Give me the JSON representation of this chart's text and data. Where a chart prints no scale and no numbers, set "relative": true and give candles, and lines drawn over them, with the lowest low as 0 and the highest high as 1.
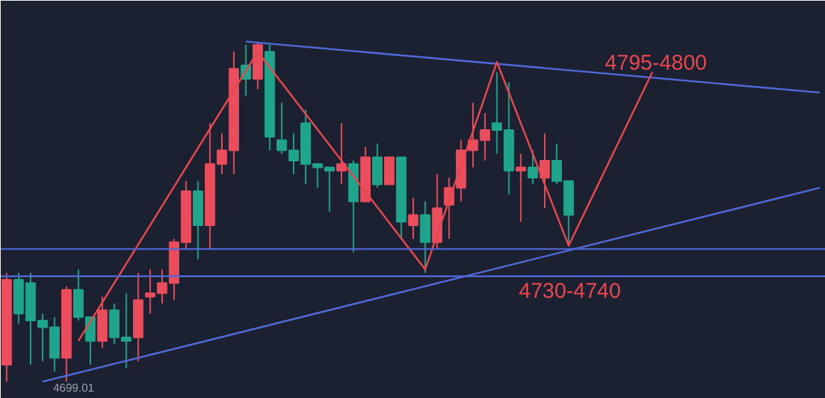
{
  "chart_data": {
    "type": "candlestick",
    "relative": true,
    "tick_labels": false,
    "categories": [
      null,
      null,
      null,
      null,
      null,
      null,
      null,
      null,
      null,
      null,
      null,
      null,
      null,
      null,
      null,
      null,
      null,
      null,
      null,
      null,
      null,
      null,
      null,
      null,
      null,
      null,
      null,
      null,
      null,
      null,
      null,
      null,
      null,
      null,
      null,
      null,
      null,
      null,
      null,
      null,
      null,
      null,
      null,
      null,
      null,
      null,
      null,
      null,
      null,
      null,
      null,
      null,
      null,
      null,
      null,
      null,
      null,
      null,
      null,
      null,
      null,
      null,
      null,
      null,
      null,
      null,
      null,
      null,
      null
    ],
    "ohlc": [
      [
        0.05,
        0.32,
        0.0,
        0.3
      ],
      [
        0.3,
        0.32,
        0.17,
        0.2
      ],
      [
        0.29,
        0.32,
        0.05,
        0.18
      ],
      [
        0.18,
        0.2,
        0.06,
        0.16
      ],
      [
        0.16,
        0.19,
        0.03,
        0.07
      ],
      [
        0.07,
        0.28,
        0.0,
        0.27
      ],
      [
        0.27,
        0.33,
        0.18,
        0.19
      ],
      [
        0.19,
        0.19,
        0.05,
        0.12
      ],
      [
        0.12,
        0.25,
        0.1,
        0.21
      ],
      [
        0.21,
        0.23,
        0.11,
        0.13
      ],
      [
        0.13,
        0.26,
        0.04,
        0.12
      ],
      [
        0.13,
        0.32,
        0.06,
        0.24
      ],
      [
        0.25,
        0.33,
        0.2,
        0.26
      ],
      [
        0.26,
        0.33,
        0.23,
        0.29
      ],
      [
        0.29,
        0.42,
        0.24,
        0.41
      ],
      [
        0.41,
        0.59,
        0.39,
        0.56
      ],
      [
        0.56,
        0.59,
        0.36,
        0.46
      ],
      [
        0.46,
        0.76,
        0.39,
        0.64
      ],
      [
        0.64,
        0.73,
        0.61,
        0.68
      ],
      [
        0.68,
        0.97,
        0.61,
        0.92
      ],
      [
        0.93,
        0.99,
        0.84,
        0.89
      ],
      [
        0.89,
        1.0,
        0.86,
        0.99
      ],
      [
        0.97,
        0.99,
        0.68,
        0.72
      ],
      [
        0.71,
        0.82,
        0.67,
        0.68
      ],
      [
        0.68,
        0.73,
        0.61,
        0.65
      ],
      [
        0.76,
        0.8,
        0.58,
        0.64
      ],
      [
        0.64,
        0.64,
        0.57,
        0.63
      ],
      [
        0.63,
        0.63,
        0.5,
        0.62
      ],
      [
        0.62,
        0.76,
        0.58,
        0.64
      ],
      [
        0.64,
        0.65,
        0.38,
        0.53
      ],
      [
        0.53,
        0.69,
        0.53,
        0.66
      ],
      [
        0.66,
        0.7,
        0.57,
        0.58
      ],
      [
        0.58,
        0.66,
        0.58,
        0.66
      ],
      [
        0.66,
        0.66,
        0.42,
        0.47
      ],
      [
        0.46,
        0.54,
        0.42,
        0.49
      ],
      [
        0.49,
        0.53,
        0.32,
        0.41
      ],
      [
        0.41,
        0.61,
        0.39,
        0.51
      ],
      [
        0.52,
        0.6,
        0.42,
        0.57
      ],
      [
        0.57,
        0.71,
        0.53,
        0.68
      ],
      [
        0.68,
        0.82,
        0.63,
        0.71
      ],
      [
        0.71,
        0.79,
        0.65,
        0.74
      ],
      [
        0.76,
        0.91,
        0.67,
        0.74
      ],
      [
        0.74,
        0.88,
        0.55,
        0.62
      ],
      [
        0.62,
        0.67,
        0.47,
        0.63
      ],
      [
        0.63,
        0.68,
        0.58,
        0.6
      ],
      [
        0.6,
        0.73,
        0.51,
        0.65
      ],
      [
        0.65,
        0.7,
        0.58,
        0.59
      ],
      [
        0.59,
        0.59,
        0.4,
        0.49
      ],
      null,
      null,
      null,
      null,
      null,
      null,
      null,
      null,
      null,
      null,
      null,
      null,
      null,
      null,
      null,
      null,
      null,
      null,
      null,
      null,
      null
    ],
    "colors": [
      "#eb4d5c",
      "#1fa58c",
      "#1fa58c",
      "#1fa58c",
      "#1fa58c",
      "#eb4d5c",
      "#1fa58c",
      "#1fa58c",
      "#eb4d5c",
      "#1fa58c",
      "#1fa58c",
      "#eb4d5c",
      "#eb4d5c",
      "#eb4d5c",
      "#eb4d5c",
      "#eb4d5c",
      "#1fa58c",
      "#eb4d5c",
      "#eb4d5c",
      "#eb4d5c",
      "#1fa58c",
      "#eb4d5c",
      "#1fa58c",
      "#1fa58c",
      "#1fa58c",
      "#1fa58c",
      "#1fa58c",
      "#1fa58c",
      "#eb4d5c",
      "#1fa58c",
      "#eb4d5c",
      "#1fa58c",
      "#eb4d5c",
      "#1fa58c",
      "#eb4d5c",
      "#1fa58c",
      "#eb4d5c",
      "#eb4d5c",
      "#eb4d5c",
      "#eb4d5c",
      "#eb4d5c",
      "#1fa58c",
      "#1fa58c",
      "#eb4d5c",
      "#1fa58c",
      "#eb4d5c",
      "#1fa58c",
      "#1fa58c",
      null,
      null,
      null,
      null,
      null,
      null,
      null,
      null,
      null,
      null,
      null,
      null,
      null,
      null,
      null,
      null,
      null,
      null,
      null,
      null,
      null
    ],
    "series": [
      {
        "type": "line",
        "color": "#5068d6",
        "values": [
          null,
          null,
          null,
          null,
          null,
          null,
          null,
          null,
          null,
          null,
          null,
          null,
          null,
          null,
          null,
          null,
          null,
          null,
          null,
          null,
          1.0,
          null,
          null,
          null,
          null,
          null,
          null,
          null,
          null,
          null,
          null,
          null,
          null,
          null,
          null,
          null,
          null,
          null,
          null,
          null,
          null,
          null,
          null,
          null,
          null,
          null,
          null,
          null,
          null,
          null,
          null,
          null,
          null,
          null,
          null,
          null,
          null,
          null,
          null,
          null,
          null,
          null,
          null,
          null,
          null,
          null,
          null,
          null,
          0.85
        ]
      },
      {
        "type": "line",
        "color": "#5068d6",
        "values": [
          null,
          null,
          null,
          0.0,
          null,
          null,
          null,
          null,
          null,
          null,
          null,
          null,
          null,
          null,
          null,
          null,
          null,
          null,
          null,
          null,
          null,
          null,
          null,
          null,
          null,
          null,
          null,
          null,
          null,
          null,
          null,
          null,
          null,
          null,
          null,
          null,
          null,
          null,
          null,
          null,
          null,
          null,
          null,
          null,
          null,
          null,
          null,
          null,
          null,
          null,
          null,
          null,
          null,
          null,
          null,
          null,
          null,
          null,
          null,
          null,
          null,
          null,
          null,
          null,
          null,
          null,
          null,
          null,
          0.57
        ]
      },
      {
        "type": "line",
        "color": "#e8474f",
        "values": [
          null,
          null,
          null,
          null,
          null,
          null,
          0.12,
          null,
          null,
          null,
          null,
          null,
          null,
          null,
          null,
          null,
          null,
          null,
          null,
          null,
          null,
          0.97,
          null,
          null,
          null,
          null,
          null,
          null,
          null,
          null,
          null,
          null,
          null,
          null,
          null,
          0.33,
          null,
          null,
          null,
          null,
          null,
          0.94,
          null,
          null,
          null,
          null,
          null,
          0.4,
          null,
          null,
          null,
          null,
          null,
          null,
          0.91,
          null,
          null,
          null,
          null,
          null,
          null,
          null,
          null,
          null,
          null,
          null,
          null,
          null,
          null
        ]
      }
    ],
    "ref_lines": [
      {
        "axis": "y",
        "value": 0.39,
        "color": "#5068d6"
      },
      {
        "axis": "y",
        "value": 0.31,
        "color": "#5068d6"
      }
    ],
    "annotations": [
      "4795-4800",
      "4730-4740",
      "4699.01"
    ]
  }
}
